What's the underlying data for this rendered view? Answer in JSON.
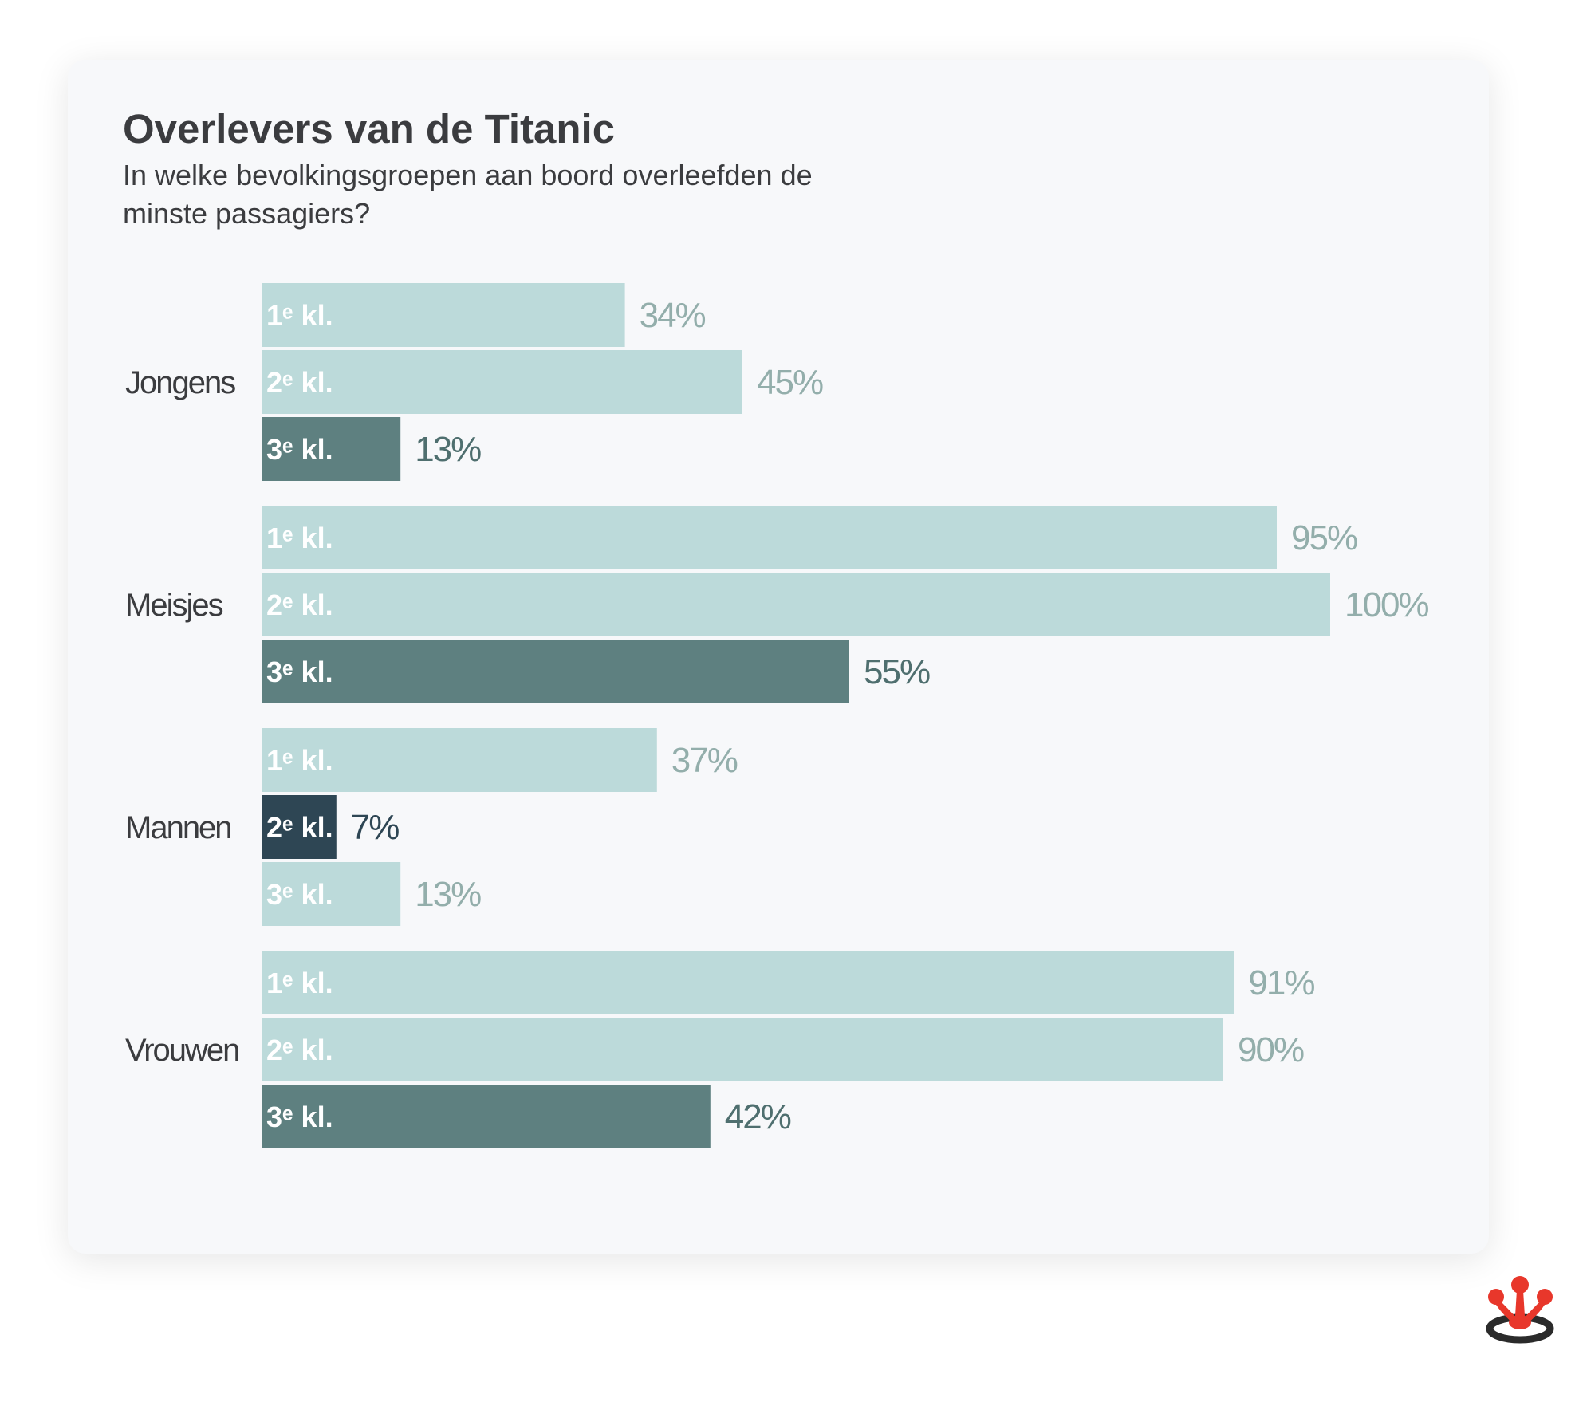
{
  "colors": {
    "light": "#bcdada",
    "mid": "#5e8080",
    "dark": "#2e4654",
    "light_label": "#93aeab",
    "mid_label": "#4f6f6f",
    "dark_label": "#2e4654",
    "bar_text": "#ffffff",
    "group_label": "#3b3c3f",
    "logo_red": "#e8372b",
    "logo_dark": "#2b2b2b"
  },
  "chart_data": {
    "type": "bar",
    "orientation": "horizontal",
    "title": "Overlevers van de Titanic",
    "subtitle": "In welke bevolkingsgroepen aan boord overleefden de minste passagiers?",
    "xlim": [
      0,
      100
    ],
    "value_suffix": "%",
    "grid": false,
    "groups": [
      {
        "name": "Jongens",
        "bars": [
          {
            "label": "1ᵉ kl.",
            "value": 34,
            "tone": "light"
          },
          {
            "label": "2ᵉ kl.",
            "value": 45,
            "tone": "light"
          },
          {
            "label": "3ᵉ kl.",
            "value": 13,
            "tone": "mid"
          }
        ]
      },
      {
        "name": "Meisjes",
        "bars": [
          {
            "label": "1ᵉ kl.",
            "value": 95,
            "tone": "light"
          },
          {
            "label": "2ᵉ kl.",
            "value": 100,
            "tone": "light"
          },
          {
            "label": "3ᵉ kl.",
            "value": 55,
            "tone": "mid"
          }
        ]
      },
      {
        "name": "Mannen",
        "bars": [
          {
            "label": "1ᵉ kl.",
            "value": 37,
            "tone": "light"
          },
          {
            "label": "2ᵉ kl.",
            "value": 7,
            "tone": "dark"
          },
          {
            "label": "3ᵉ kl.",
            "value": 13,
            "tone": "light"
          }
        ]
      },
      {
        "name": "Vrouwen",
        "bars": [
          {
            "label": "1ᵉ kl.",
            "value": 91,
            "tone": "light"
          },
          {
            "label": "2ᵉ kl.",
            "value": 90,
            "tone": "light"
          },
          {
            "label": "3ᵉ kl.",
            "value": 42,
            "tone": "mid"
          }
        ]
      }
    ]
  }
}
